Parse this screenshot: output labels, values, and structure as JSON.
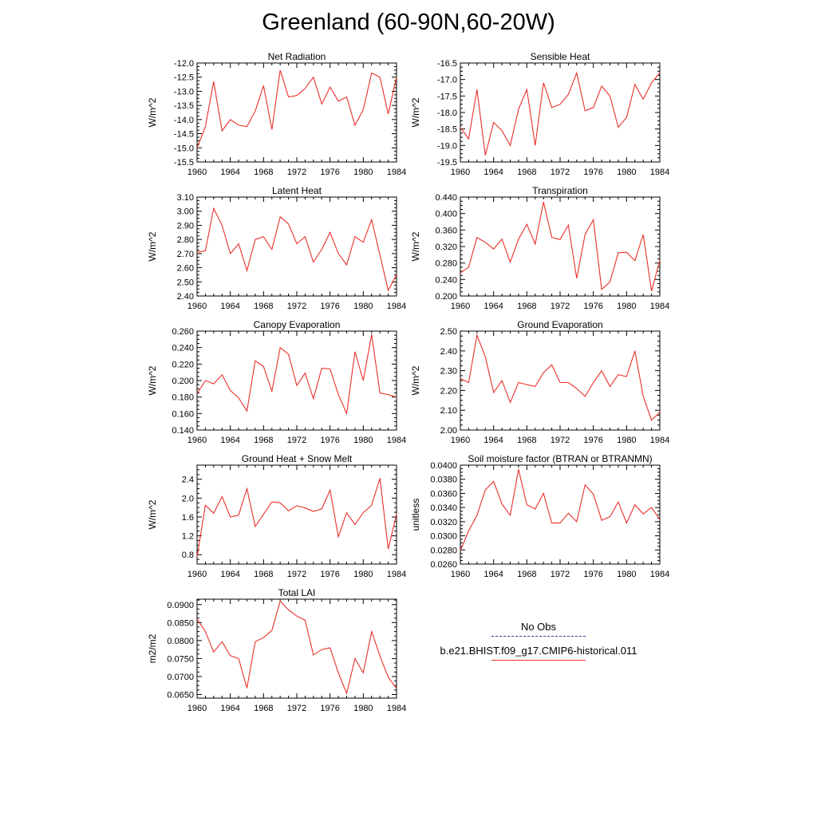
{
  "page": {
    "title": "Greenland (60-90N,60-20W)"
  },
  "legend": {
    "obs_label": "No Obs",
    "obs_color": "#3a3a9c",
    "model_label": "b.e21.BHIST.f09_g17.CMIP6-historical.011",
    "model_color": "#e8302a"
  },
  "chart_data": [
    {
      "type": "line",
      "title": "Net Radiation",
      "ylabel": "W/m^2",
      "xlim": [
        1960,
        1984
      ],
      "xticks": [
        1960,
        1964,
        1968,
        1972,
        1976,
        1980,
        1984
      ],
      "ylim": [
        -15.5,
        -12.0
      ],
      "yticks": [
        "-15.5",
        "-15.0",
        "-14.5",
        "-14.0",
        "-13.5",
        "-13.0",
        "-12.5",
        "-12.0"
      ],
      "series": [
        {
          "color": "#e8302a",
          "x": [
            1960,
            1961,
            1962,
            1963,
            1964,
            1965,
            1966,
            1967,
            1968,
            1969,
            1970,
            1971,
            1972,
            1973,
            1974,
            1975,
            1976,
            1977,
            1978,
            1979,
            1980,
            1981,
            1982,
            1983,
            1984
          ],
          "y": [
            -15.0,
            -14.25,
            -12.65,
            -14.4,
            -14.0,
            -14.2,
            -14.25,
            -13.7,
            -12.8,
            -14.35,
            -12.25,
            -13.2,
            -13.15,
            -12.9,
            -12.5,
            -13.45,
            -12.85,
            -13.35,
            -13.2,
            -14.2,
            -13.65,
            -12.35,
            -12.5,
            -13.8,
            -12.5
          ]
        }
      ]
    },
    {
      "type": "line",
      "title": "Sensible Heat",
      "ylabel": "W/m^2",
      "xlim": [
        1960,
        1984
      ],
      "xticks": [
        1960,
        1964,
        1968,
        1972,
        1976,
        1980,
        1984
      ],
      "ylim": [
        -19.5,
        -16.5
      ],
      "yticks": [
        "-19.5",
        "-19.0",
        "-18.5",
        "-18.0",
        "-17.5",
        "-17.0",
        "-16.5"
      ],
      "series": [
        {
          "color": "#e8302a",
          "x": [
            1960,
            1961,
            1962,
            1963,
            1964,
            1965,
            1966,
            1967,
            1968,
            1969,
            1970,
            1971,
            1972,
            1973,
            1974,
            1975,
            1976,
            1977,
            1978,
            1979,
            1980,
            1981,
            1982,
            1983,
            1984
          ],
          "y": [
            -18.45,
            -18.8,
            -17.3,
            -19.3,
            -18.3,
            -18.55,
            -19.0,
            -17.9,
            -17.3,
            -19.0,
            -17.1,
            -17.85,
            -17.75,
            -17.45,
            -16.8,
            -17.95,
            -17.85,
            -17.2,
            -17.5,
            -18.45,
            -18.15,
            -17.15,
            -17.6,
            -17.1,
            -16.8
          ]
        }
      ]
    },
    {
      "type": "line",
      "title": "Latent Heat",
      "ylabel": "W/m^2",
      "xlim": [
        1960,
        1984
      ],
      "xticks": [
        1960,
        1964,
        1968,
        1972,
        1976,
        1980,
        1984
      ],
      "ylim": [
        2.4,
        3.1
      ],
      "yticks": [
        "2.40",
        "2.50",
        "2.60",
        "2.70",
        "2.80",
        "2.90",
        "3.00",
        "3.10"
      ],
      "series": [
        {
          "color": "#e8302a",
          "x": [
            1960,
            1961,
            1962,
            1963,
            1964,
            1965,
            1966,
            1967,
            1968,
            1969,
            1970,
            1971,
            1972,
            1973,
            1974,
            1975,
            1976,
            1977,
            1978,
            1979,
            1980,
            1981,
            1982,
            1983,
            1984
          ],
          "y": [
            2.71,
            2.72,
            3.02,
            2.9,
            2.7,
            2.77,
            2.58,
            2.8,
            2.82,
            2.73,
            2.96,
            2.91,
            2.77,
            2.82,
            2.64,
            2.73,
            2.85,
            2.7,
            2.62,
            2.82,
            2.78,
            2.94,
            2.69,
            2.44,
            2.55
          ]
        }
      ]
    },
    {
      "type": "line",
      "title": "Transpiration",
      "ylabel": "W/m^2",
      "xlim": [
        1960,
        1984
      ],
      "xticks": [
        1960,
        1964,
        1968,
        1972,
        1976,
        1980,
        1984
      ],
      "ylim": [
        0.2,
        0.44
      ],
      "yticks": [
        "0.200",
        "0.240",
        "0.280",
        "0.320",
        "0.360",
        "0.400",
        "0.440"
      ],
      "series": [
        {
          "color": "#e8302a",
          "x": [
            1960,
            1961,
            1962,
            1963,
            1964,
            1965,
            1966,
            1967,
            1968,
            1969,
            1970,
            1971,
            1972,
            1973,
            1974,
            1975,
            1976,
            1977,
            1978,
            1979,
            1980,
            1981,
            1982,
            1983,
            1984
          ],
          "y": [
            0.256,
            0.27,
            0.342,
            0.33,
            0.314,
            0.338,
            0.282,
            0.338,
            0.374,
            0.326,
            0.428,
            0.342,
            0.337,
            0.372,
            0.243,
            0.349,
            0.385,
            0.216,
            0.234,
            0.305,
            0.306,
            0.286,
            0.349,
            0.212,
            0.287
          ]
        }
      ]
    },
    {
      "type": "line",
      "title": "Canopy Evaporation",
      "ylabel": "W/m^2",
      "xlim": [
        1960,
        1984
      ],
      "xticks": [
        1960,
        1964,
        1968,
        1972,
        1976,
        1980,
        1984
      ],
      "ylim": [
        0.14,
        0.26
      ],
      "yticks": [
        "0.140",
        "0.160",
        "0.180",
        "0.200",
        "0.220",
        "0.240",
        "0.260"
      ],
      "series": [
        {
          "color": "#e8302a",
          "x": [
            1960,
            1961,
            1962,
            1963,
            1964,
            1965,
            1966,
            1967,
            1968,
            1969,
            1970,
            1971,
            1972,
            1973,
            1974,
            1975,
            1976,
            1977,
            1978,
            1979,
            1980,
            1981,
            1982,
            1983,
            1984
          ],
          "y": [
            0.184,
            0.2,
            0.196,
            0.207,
            0.188,
            0.179,
            0.163,
            0.224,
            0.217,
            0.187,
            0.24,
            0.232,
            0.194,
            0.209,
            0.178,
            0.215,
            0.214,
            0.183,
            0.16,
            0.235,
            0.2,
            0.256,
            0.185,
            0.183,
            0.18
          ]
        }
      ]
    },
    {
      "type": "line",
      "title": "Ground Evaporation",
      "ylabel": "W/m^2",
      "xlim": [
        1960,
        1984
      ],
      "xticks": [
        1960,
        1964,
        1968,
        1972,
        1976,
        1980,
        1984
      ],
      "ylim": [
        2.0,
        2.5
      ],
      "yticks": [
        "2.00",
        "2.10",
        "2.20",
        "2.30",
        "2.40",
        "2.50"
      ],
      "series": [
        {
          "color": "#e8302a",
          "x": [
            1960,
            1961,
            1962,
            1963,
            1964,
            1965,
            1966,
            1967,
            1968,
            1969,
            1970,
            1971,
            1972,
            1973,
            1974,
            1975,
            1976,
            1977,
            1978,
            1979,
            1980,
            1981,
            1982,
            1983,
            1984
          ],
          "y": [
            2.26,
            2.24,
            2.48,
            2.37,
            2.19,
            2.25,
            2.14,
            2.24,
            2.23,
            2.22,
            2.29,
            2.33,
            2.24,
            2.24,
            2.21,
            2.17,
            2.24,
            2.3,
            2.22,
            2.28,
            2.27,
            2.4,
            2.17,
            2.05,
            2.09
          ]
        }
      ]
    },
    {
      "type": "line",
      "title": "Ground Heat + Snow Melt",
      "ylabel": "W/m^2",
      "xlim": [
        1960,
        1984
      ],
      "xticks": [
        1960,
        1964,
        1968,
        1972,
        1976,
        1980,
        1984
      ],
      "ylim": [
        0.6,
        2.7
      ],
      "yticks": [
        "0.8",
        "1.2",
        "1.6",
        "2.0",
        "2.4"
      ],
      "series": [
        {
          "color": "#e8302a",
          "x": [
            1960,
            1961,
            1962,
            1963,
            1964,
            1965,
            1966,
            1967,
            1968,
            1969,
            1970,
            1971,
            1972,
            1973,
            1974,
            1975,
            1976,
            1977,
            1978,
            1979,
            1980,
            1981,
            1982,
            1983,
            1984
          ],
          "y": [
            0.75,
            1.85,
            1.68,
            2.03,
            1.6,
            1.64,
            2.2,
            1.4,
            1.66,
            1.92,
            1.9,
            1.73,
            1.84,
            1.79,
            1.72,
            1.77,
            2.17,
            1.18,
            1.69,
            1.44,
            1.69,
            1.85,
            2.42,
            0.92,
            1.66
          ]
        }
      ]
    },
    {
      "type": "line",
      "title": "Soil moisture factor (BTRAN or BTRANMN)",
      "ylabel": "unitless",
      "xlim": [
        1960,
        1984
      ],
      "xticks": [
        1960,
        1964,
        1968,
        1972,
        1976,
        1980,
        1984
      ],
      "ylim": [
        0.026,
        0.04
      ],
      "yticks": [
        "0.0260",
        "0.0280",
        "0.0300",
        "0.0320",
        "0.0340",
        "0.0360",
        "0.0380",
        "0.0400"
      ],
      "series": [
        {
          "color": "#e8302a",
          "x": [
            1960,
            1961,
            1962,
            1963,
            1964,
            1965,
            1966,
            1967,
            1968,
            1969,
            1970,
            1971,
            1972,
            1973,
            1974,
            1975,
            1976,
            1977,
            1978,
            1979,
            1980,
            1981,
            1982,
            1983,
            1984
          ],
          "y": [
            0.0279,
            0.0307,
            0.0329,
            0.0365,
            0.0377,
            0.0345,
            0.0329,
            0.0394,
            0.0344,
            0.0338,
            0.036,
            0.0318,
            0.0318,
            0.0332,
            0.032,
            0.0372,
            0.0359,
            0.0322,
            0.0327,
            0.0348,
            0.0318,
            0.0344,
            0.0331,
            0.034,
            0.0323
          ]
        }
      ]
    },
    {
      "type": "line",
      "title": "Total LAI",
      "ylabel": "m2/m2",
      "xlim": [
        1960,
        1984
      ],
      "xticks": [
        1960,
        1964,
        1968,
        1972,
        1976,
        1980,
        1984
      ],
      "ylim": [
        0.064,
        0.0915
      ],
      "yticks": [
        "0.0650",
        "0.0700",
        "0.0750",
        "0.0800",
        "0.0850",
        "0.0900"
      ],
      "series": [
        {
          "color": "#e8302a",
          "x": [
            1960,
            1961,
            1962,
            1963,
            1964,
            1965,
            1966,
            1967,
            1968,
            1969,
            1970,
            1971,
            1972,
            1973,
            1974,
            1975,
            1976,
            1977,
            1978,
            1979,
            1980,
            1981,
            1982,
            1983,
            1984
          ],
          "y": [
            0.086,
            0.0825,
            0.0768,
            0.0797,
            0.0758,
            0.075,
            0.0668,
            0.0797,
            0.0808,
            0.0828,
            0.091,
            0.0885,
            0.0868,
            0.0857,
            0.076,
            0.0775,
            0.078,
            0.071,
            0.0653,
            0.075,
            0.071,
            0.0825,
            0.0757,
            0.0698,
            0.0667
          ]
        }
      ]
    }
  ]
}
